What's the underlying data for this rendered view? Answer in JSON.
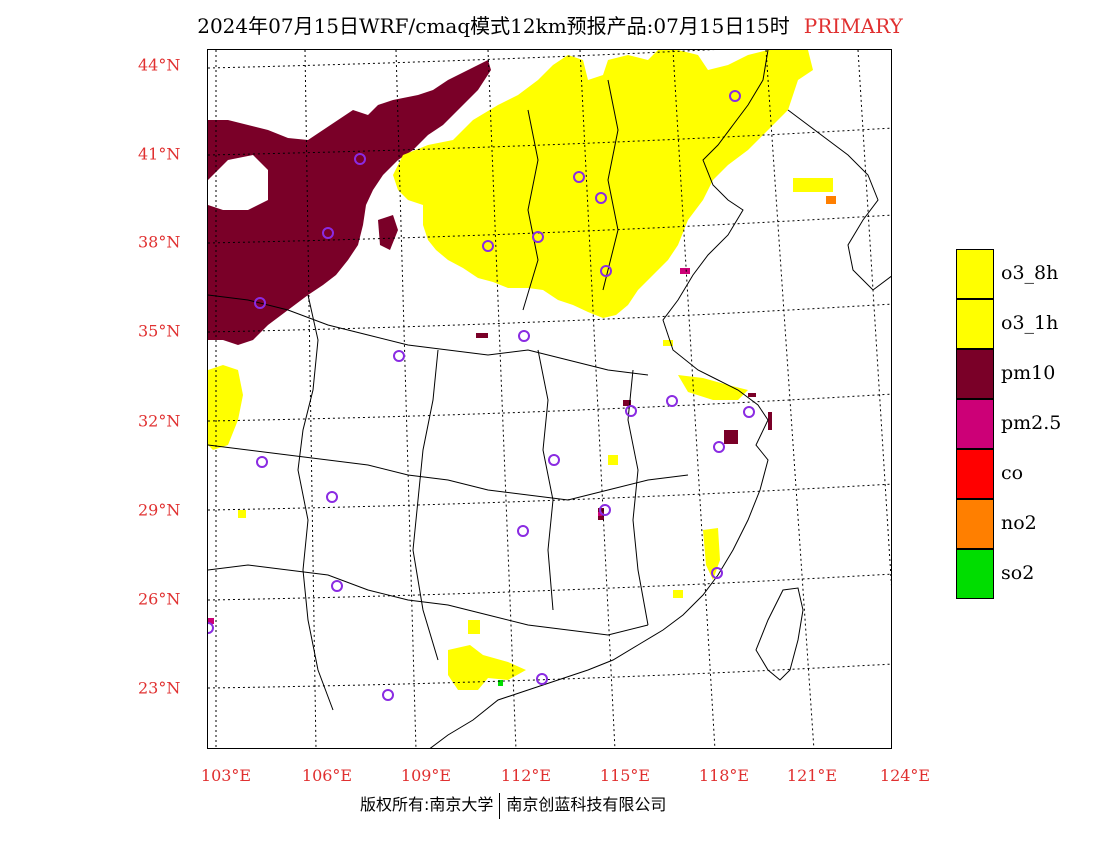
{
  "title": {
    "main": "2024年07月15日WRF/cmaq模式12km预报产品:07月15日15时",
    "mode": "PRIMARY"
  },
  "map": {
    "lat_labels": [
      "44°N",
      "41°N",
      "38°N",
      "35°N",
      "32°N",
      "29°N",
      "26°N",
      "23°N"
    ],
    "lon_labels": [
      "103°E",
      "106°E",
      "109°E",
      "112°E",
      "115°E",
      "118°E",
      "121°E",
      "124°E"
    ],
    "colors": {
      "o3_8h": "#ffff00",
      "o3_1h": "#ffff00",
      "pm10": "#7a0028",
      "pm2.5": "#cc0077",
      "co": "#ff0000",
      "no2": "#ff7f00",
      "so2": "#00dd00",
      "station_marker": "#8a2be2",
      "axis_label": "#e03030"
    }
  },
  "legend": [
    {
      "label": "o3_8h",
      "color": "#ffff00"
    },
    {
      "label": "o3_1h",
      "color": "#ffff00"
    },
    {
      "label": "pm10",
      "color": "#7a0028"
    },
    {
      "label": "pm2.5",
      "color": "#cc0077"
    },
    {
      "label": "co",
      "color": "#ff0000"
    },
    {
      "label": "no2",
      "color": "#ff7f00"
    },
    {
      "label": "so2",
      "color": "#00dd00"
    }
  ],
  "credit": {
    "left": "版权所有:南京大学",
    "right": "南京创蓝科技有限公司"
  }
}
